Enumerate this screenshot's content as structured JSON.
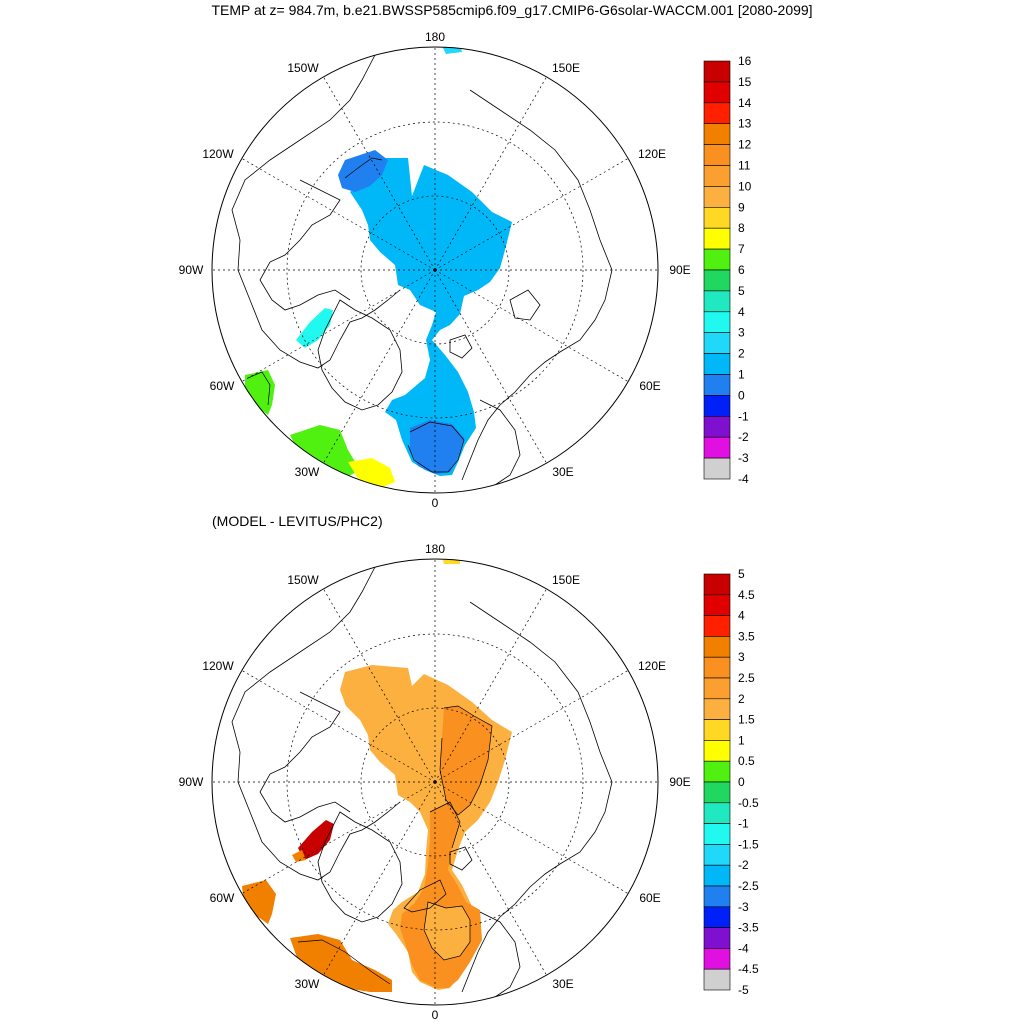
{
  "title": "TEMP at z= 984.7m, b.e21.BWSSP585cmip6.f09_g17.CMIP6-G6solar-WACCM.001 [2080-2099]",
  "subtitle": "(MODEL - LEVITUS/PHC2)",
  "lon_labels": [
    "180",
    "150E",
    "120E",
    "90E",
    "60E",
    "30E",
    "0",
    "30W",
    "60W",
    "90W",
    "120W",
    "150W"
  ],
  "panels": [
    {
      "id": "top",
      "colorbar_labels": [
        "16",
        "15",
        "14",
        "13",
        "12",
        "11",
        "10",
        "9",
        "8",
        "7",
        "6",
        "5",
        "4",
        "3",
        "2",
        "1",
        "0",
        "-1",
        "-2",
        "-3",
        "-4"
      ],
      "colorbar_colors": [
        "#c80000",
        "#e00000",
        "#ff2000",
        "#f28000",
        "#f99020",
        "#fba030",
        "#fbb040",
        "#ffd826",
        "#ffff00",
        "#50f010",
        "#20d860",
        "#20e8c0",
        "#20f8f0",
        "#20d8f8",
        "#00b8f8",
        "#2080f0",
        "#0020f8",
        "#8010d0",
        "#e010e0",
        "#d0d0d0",
        "#707070"
      ]
    },
    {
      "id": "bottom",
      "colorbar_labels": [
        "5",
        "4.5",
        "4",
        "3.5",
        "3",
        "2.5",
        "2",
        "1.5",
        "1",
        "0.5",
        "0",
        "-0.5",
        "-1",
        "-1.5",
        "-2",
        "-2.5",
        "-3",
        "-3.5",
        "-4",
        "-4.5",
        "-5"
      ],
      "colorbar_colors": [
        "#c80000",
        "#e00000",
        "#ff2000",
        "#f28000",
        "#f99020",
        "#fba030",
        "#fbb040",
        "#ffd826",
        "#ffff00",
        "#50f010",
        "#20d860",
        "#20e8c0",
        "#20f8f0",
        "#20d8f8",
        "#00b8f8",
        "#2080f0",
        "#0020f8",
        "#8010d0",
        "#e010e0",
        "#d0d0d0",
        "#707070"
      ]
    }
  ]
}
